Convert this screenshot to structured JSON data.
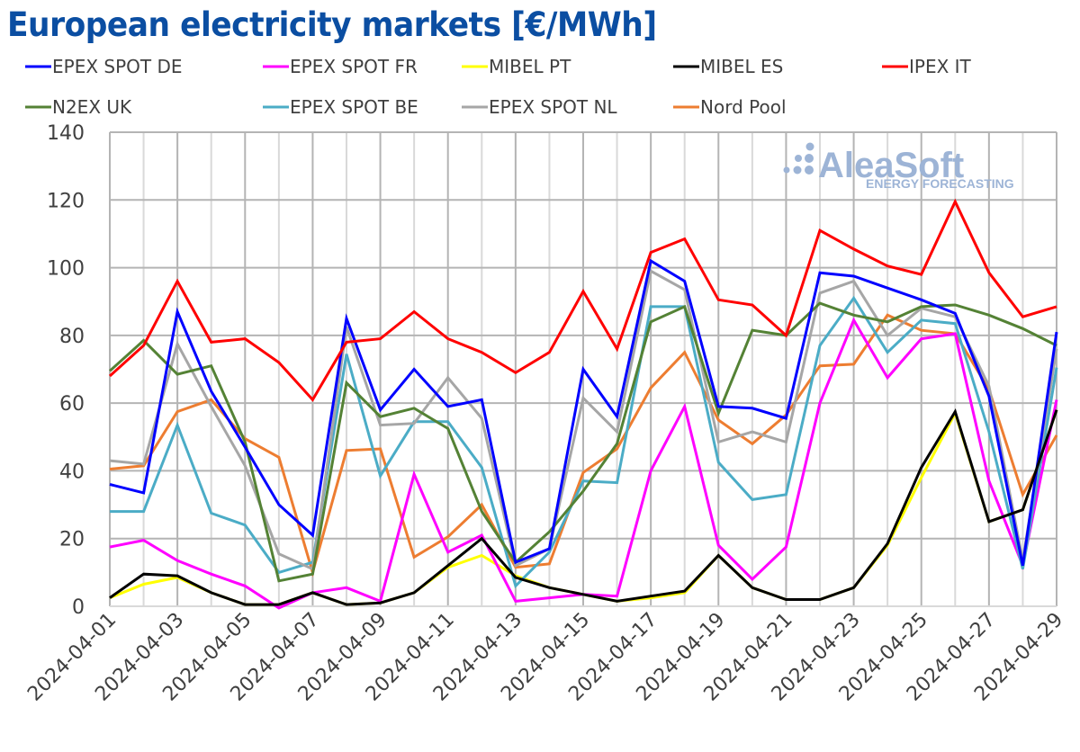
{
  "title": "European electricity markets [€/MWh]",
  "watermark": {
    "brand": "AleaSoft",
    "tagline": "ENERGY FORECASTING",
    "icon": "dots-logo-icon"
  },
  "chart_data": {
    "type": "line",
    "title": "European electricity markets [€/MWh]",
    "xlabel": "",
    "ylabel": "€/MWh",
    "ylim": [
      0,
      140
    ],
    "yticks": [
      0,
      20,
      40,
      60,
      80,
      100,
      120,
      140
    ],
    "grid": true,
    "legend_position": "top",
    "x": [
      "2024-04-01",
      "2024-04-02",
      "2024-04-03",
      "2024-04-04",
      "2024-04-05",
      "2024-04-06",
      "2024-04-07",
      "2024-04-08",
      "2024-04-09",
      "2024-04-10",
      "2024-04-11",
      "2024-04-12",
      "2024-04-13",
      "2024-04-14",
      "2024-04-15",
      "2024-04-16",
      "2024-04-17",
      "2024-04-18",
      "2024-04-19",
      "2024-04-20",
      "2024-04-21",
      "2024-04-22",
      "2024-04-23",
      "2024-04-24",
      "2024-04-25",
      "2024-04-26",
      "2024-04-27",
      "2024-04-28",
      "2024-04-29"
    ],
    "xtick_labels": [
      "2024-04-01",
      "2024-04-03",
      "2024-04-05",
      "2024-04-07",
      "2024-04-09",
      "2024-04-11",
      "2024-04-13",
      "2024-04-15",
      "2024-04-17",
      "2024-04-19",
      "2024-04-21",
      "2024-04-23",
      "2024-04-25",
      "2024-04-27",
      "2024-04-29"
    ],
    "series": [
      {
        "name": "EPEX SPOT DE",
        "color": "#0000ff",
        "values": [
          36,
          33.5,
          87,
          63.5,
          47,
          30,
          21,
          85,
          58,
          70,
          59,
          61,
          13,
          17,
          70,
          56,
          102,
          96,
          59,
          58.5,
          55.5,
          98.5,
          97.5,
          94,
          90.5,
          86.5,
          62,
          12,
          81
        ]
      },
      {
        "name": "EPEX SPOT FR",
        "color": "#ff00ff",
        "values": [
          17.5,
          19.5,
          13.5,
          9.5,
          6,
          -0.5,
          4,
          5.5,
          1.5,
          39,
          16,
          21,
          1.5,
          2.5,
          3.5,
          3,
          40,
          59,
          18,
          8,
          17.5,
          60,
          84.5,
          67.5,
          79,
          80.5,
          37,
          12,
          61
        ]
      },
      {
        "name": "MIBEL PT",
        "color": "#ffff00",
        "values": [
          2.5,
          6.5,
          8.5,
          4,
          0.5,
          0.5,
          4,
          0.5,
          1,
          4,
          11.5,
          15,
          9,
          5.5,
          3.5,
          1.5,
          2.5,
          4,
          15,
          5.5,
          2,
          2,
          5.5,
          18,
          38,
          57,
          25,
          28.5,
          58
        ]
      },
      {
        "name": "MIBEL ES",
        "color": "#000000",
        "values": [
          2.5,
          9.5,
          9,
          4,
          0.5,
          0.5,
          4,
          0.5,
          1,
          4,
          12,
          20,
          8.5,
          5.5,
          3.5,
          1.5,
          3,
          4.5,
          15,
          5.5,
          2,
          2,
          5.5,
          18.5,
          41,
          57.5,
          25,
          28.5,
          58
        ]
      },
      {
        "name": "IPEX IT",
        "color": "#ff0000",
        "values": [
          68,
          77,
          96,
          78,
          79,
          72,
          61,
          78,
          79,
          87,
          79,
          75,
          69,
          75,
          93,
          76,
          104.5,
          108.5,
          90.5,
          89,
          80,
          111,
          105.5,
          100.5,
          98,
          119.5,
          98.5,
          85.5,
          88.5
        ]
      },
      {
        "name": "N2EX UK",
        "color": "#548235",
        "values": [
          69.5,
          78.5,
          68.5,
          71,
          48.5,
          7.5,
          9.5,
          66,
          56,
          58.5,
          52.5,
          28,
          13,
          22,
          34,
          48,
          84,
          88.5,
          57,
          81.5,
          80,
          89.5,
          86,
          84,
          88.5,
          89,
          86,
          82,
          77
        ]
      },
      {
        "name": "EPEX SPOT BE",
        "color": "#4bacc6",
        "values": [
          28,
          28,
          53.5,
          27.5,
          24,
          10,
          13,
          74.5,
          38.5,
          54.5,
          54.5,
          41,
          6,
          16,
          37,
          36.5,
          88.5,
          88.5,
          42.5,
          31.5,
          33,
          77,
          91,
          75,
          84.5,
          83.5,
          51.5,
          11,
          70.5
        ]
      },
      {
        "name": "EPEX SPOT NL",
        "color": "#a6a6a6",
        "values": [
          43,
          42,
          77.5,
          59,
          41.5,
          15.5,
          11,
          82.5,
          53.5,
          54,
          67.5,
          55.5,
          12,
          17,
          61.5,
          51.5,
          99,
          93.5,
          48.5,
          51.5,
          48.5,
          92.5,
          96,
          80,
          88,
          85.5,
          65,
          13.5,
          76
        ]
      },
      {
        "name": "Nord Pool",
        "color": "#ed7d31",
        "values": [
          40.5,
          41.5,
          57.5,
          61,
          49.5,
          44,
          10,
          46,
          46.5,
          14.5,
          20.5,
          30,
          11.5,
          12.5,
          39.5,
          46.5,
          64.5,
          75,
          55,
          48,
          56.5,
          71,
          71.5,
          86,
          81.5,
          80.5,
          64,
          33,
          50.5
        ]
      }
    ]
  }
}
